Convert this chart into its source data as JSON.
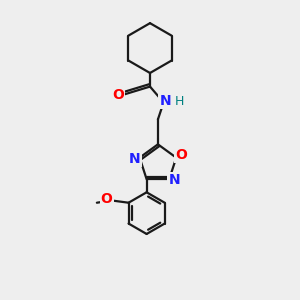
{
  "bg_color": "#eeeeee",
  "bond_color": "#1a1a1a",
  "N_color": "#2020ff",
  "O_color": "#ff0000",
  "H_color": "#008080",
  "line_width": 1.6,
  "figsize": [
    3.0,
    3.0
  ],
  "dpi": 100,
  "xlim": [
    0,
    10
  ],
  "ylim": [
    0,
    13
  ]
}
